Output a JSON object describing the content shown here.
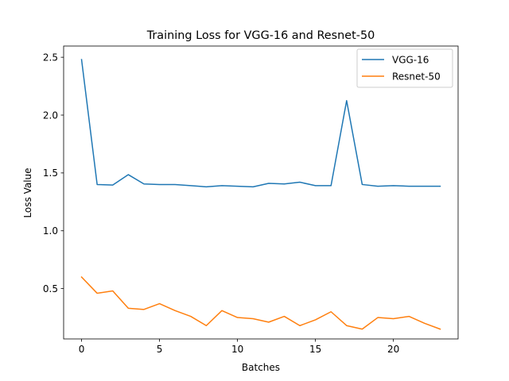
{
  "chart_data": {
    "type": "line",
    "title": "Training Loss for VGG-16 and Resnet-50",
    "xlabel": "Batches",
    "ylabel": "Loss Value",
    "x": [
      0,
      1,
      2,
      3,
      4,
      5,
      6,
      7,
      8,
      9,
      10,
      11,
      12,
      13,
      14,
      15,
      16,
      17,
      18,
      19,
      20,
      21,
      22,
      23
    ],
    "xlim": [
      -1.15,
      24.15
    ],
    "ylim": [
      0.065,
      2.597
    ],
    "xticks": [
      0,
      5,
      10,
      15,
      20
    ],
    "yticks": [
      0.5,
      1.0,
      1.5,
      2.0,
      2.5
    ],
    "xtick_labels": [
      "0",
      "5",
      "10",
      "15",
      "20"
    ],
    "ytick_labels": [
      "0.5",
      "1.0",
      "1.5",
      "2.0",
      "2.5"
    ],
    "grid": false,
    "legend_position": "top-right",
    "series": [
      {
        "name": "VGG-16",
        "color": "#1f77b4",
        "values": [
          2.48,
          1.4,
          1.395,
          1.485,
          1.405,
          1.4,
          1.4,
          1.39,
          1.38,
          1.39,
          1.385,
          1.38,
          1.41,
          1.405,
          1.42,
          1.39,
          1.39,
          2.125,
          1.4,
          1.385,
          1.39,
          1.385,
          1.385,
          1.385
        ]
      },
      {
        "name": "Resnet-50",
        "color": "#ff7f0e",
        "values": [
          0.6,
          0.46,
          0.48,
          0.33,
          0.32,
          0.37,
          0.31,
          0.26,
          0.18,
          0.31,
          0.25,
          0.24,
          0.21,
          0.26,
          0.18,
          0.23,
          0.3,
          0.18,
          0.15,
          0.25,
          0.24,
          0.26,
          0.2,
          0.15
        ]
      }
    ]
  }
}
